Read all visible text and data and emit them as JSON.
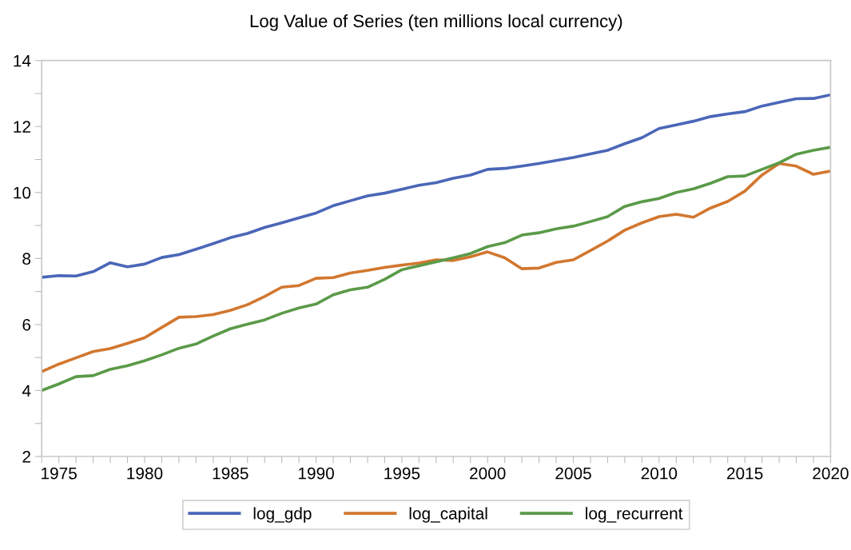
{
  "chart_data": {
    "type": "line",
    "title": "Log Value of Series (ten millions local currency)",
    "x": [
      1974,
      1975,
      1976,
      1977,
      1978,
      1979,
      1980,
      1981,
      1982,
      1983,
      1984,
      1985,
      1986,
      1987,
      1988,
      1989,
      1990,
      1991,
      1992,
      1993,
      1994,
      1995,
      1996,
      1997,
      1998,
      1999,
      2000,
      2001,
      2002,
      2003,
      2004,
      2005,
      2006,
      2007,
      2008,
      2009,
      2010,
      2011,
      2012,
      2013,
      2014,
      2015,
      2016,
      2017,
      2018,
      2019,
      2020
    ],
    "series": [
      {
        "name": "log_gdp",
        "color": "#4a66b8",
        "values": [
          7.43,
          7.48,
          7.47,
          7.6,
          7.87,
          7.75,
          7.83,
          8.03,
          8.12,
          8.28,
          8.45,
          8.63,
          8.76,
          8.94,
          9.08,
          9.23,
          9.38,
          9.6,
          9.75,
          9.9,
          9.98,
          10.1,
          10.22,
          10.3,
          10.43,
          10.53,
          10.7,
          10.73,
          10.8,
          10.88,
          10.97,
          11.06,
          11.17,
          11.28,
          11.48,
          11.66,
          11.94,
          12.05,
          12.16,
          12.3,
          12.38,
          12.45,
          12.62,
          12.73,
          12.84,
          12.85,
          12.96
        ]
      },
      {
        "name": "log_capital",
        "color": "#d2772f",
        "values": [
          4.57,
          4.8,
          4.99,
          5.18,
          5.27,
          5.43,
          5.6,
          5.91,
          6.22,
          6.24,
          6.3,
          6.43,
          6.6,
          6.85,
          7.13,
          7.18,
          7.4,
          7.42,
          7.56,
          7.64,
          7.73,
          7.8,
          7.86,
          7.96,
          7.94,
          8.05,
          8.2,
          8.02,
          7.69,
          7.71,
          7.88,
          7.96,
          8.24,
          8.53,
          8.86,
          9.08,
          9.27,
          9.34,
          9.25,
          9.53,
          9.73,
          10.04,
          10.53,
          10.88,
          10.8,
          10.55,
          10.65
        ]
      },
      {
        "name": "log_recurrent",
        "color": "#5a9a48",
        "values": [
          4.0,
          4.2,
          4.42,
          4.45,
          4.64,
          4.75,
          4.9,
          5.08,
          5.28,
          5.41,
          5.65,
          5.87,
          6.01,
          6.14,
          6.34,
          6.5,
          6.62,
          6.9,
          7.05,
          7.13,
          7.37,
          7.66,
          7.78,
          7.9,
          8.02,
          8.15,
          8.36,
          8.48,
          8.71,
          8.78,
          8.9,
          8.98,
          9.12,
          9.27,
          9.58,
          9.72,
          9.82,
          10.0,
          10.11,
          10.28,
          10.48,
          10.5,
          10.7,
          10.9,
          11.16,
          11.28,
          11.37
        ]
      }
    ],
    "xlim": [
      1974,
      2020
    ],
    "xticks": [
      {
        "value": 1974,
        "label": null
      },
      1975,
      {
        "value": 1976,
        "label": null
      },
      {
        "value": 1977,
        "label": null
      },
      {
        "value": 1978,
        "label": null
      },
      {
        "value": 1979,
        "label": null
      },
      1980,
      {
        "value": 1981,
        "label": null
      },
      {
        "value": 1982,
        "label": null
      },
      {
        "value": 1983,
        "label": null
      },
      {
        "value": 1984,
        "label": null
      },
      1985,
      {
        "value": 1986,
        "label": null
      },
      {
        "value": 1987,
        "label": null
      },
      {
        "value": 1988,
        "label": null
      },
      {
        "value": 1989,
        "label": null
      },
      1990,
      {
        "value": 1991,
        "label": null
      },
      {
        "value": 1992,
        "label": null
      },
      {
        "value": 1993,
        "label": null
      },
      {
        "value": 1994,
        "label": null
      },
      1995,
      {
        "value": 1996,
        "label": null
      },
      {
        "value": 1997,
        "label": null
      },
      {
        "value": 1998,
        "label": null
      },
      {
        "value": 1999,
        "label": null
      },
      2000,
      {
        "value": 2001,
        "label": null
      },
      {
        "value": 2002,
        "label": null
      },
      {
        "value": 2003,
        "label": null
      },
      {
        "value": 2004,
        "label": null
      },
      2005,
      {
        "value": 2006,
        "label": null
      },
      {
        "value": 2007,
        "label": null
      },
      {
        "value": 2008,
        "label": null
      },
      {
        "value": 2009,
        "label": null
      },
      2010,
      {
        "value": 2011,
        "label": null
      },
      {
        "value": 2012,
        "label": null
      },
      {
        "value": 2013,
        "label": null
      },
      {
        "value": 2014,
        "label": null
      },
      2015,
      {
        "value": 2016,
        "label": null
      },
      {
        "value": 2017,
        "label": null
      },
      {
        "value": 2018,
        "label": null
      },
      {
        "value": 2019,
        "label": null
      },
      2020
    ],
    "ylim": [
      2,
      14
    ],
    "yticks": [
      2,
      {
        "value": 3,
        "label": null
      },
      4,
      {
        "value": 5,
        "label": null
      },
      6,
      {
        "value": 7,
        "label": null
      },
      8,
      {
        "value": 9,
        "label": null
      },
      10,
      {
        "value": 11,
        "label": null
      },
      12,
      {
        "value": 13,
        "label": null
      },
      14
    ],
    "grid": false,
    "legend": "bottom",
    "marker": "none",
    "line_style": "solid"
  }
}
